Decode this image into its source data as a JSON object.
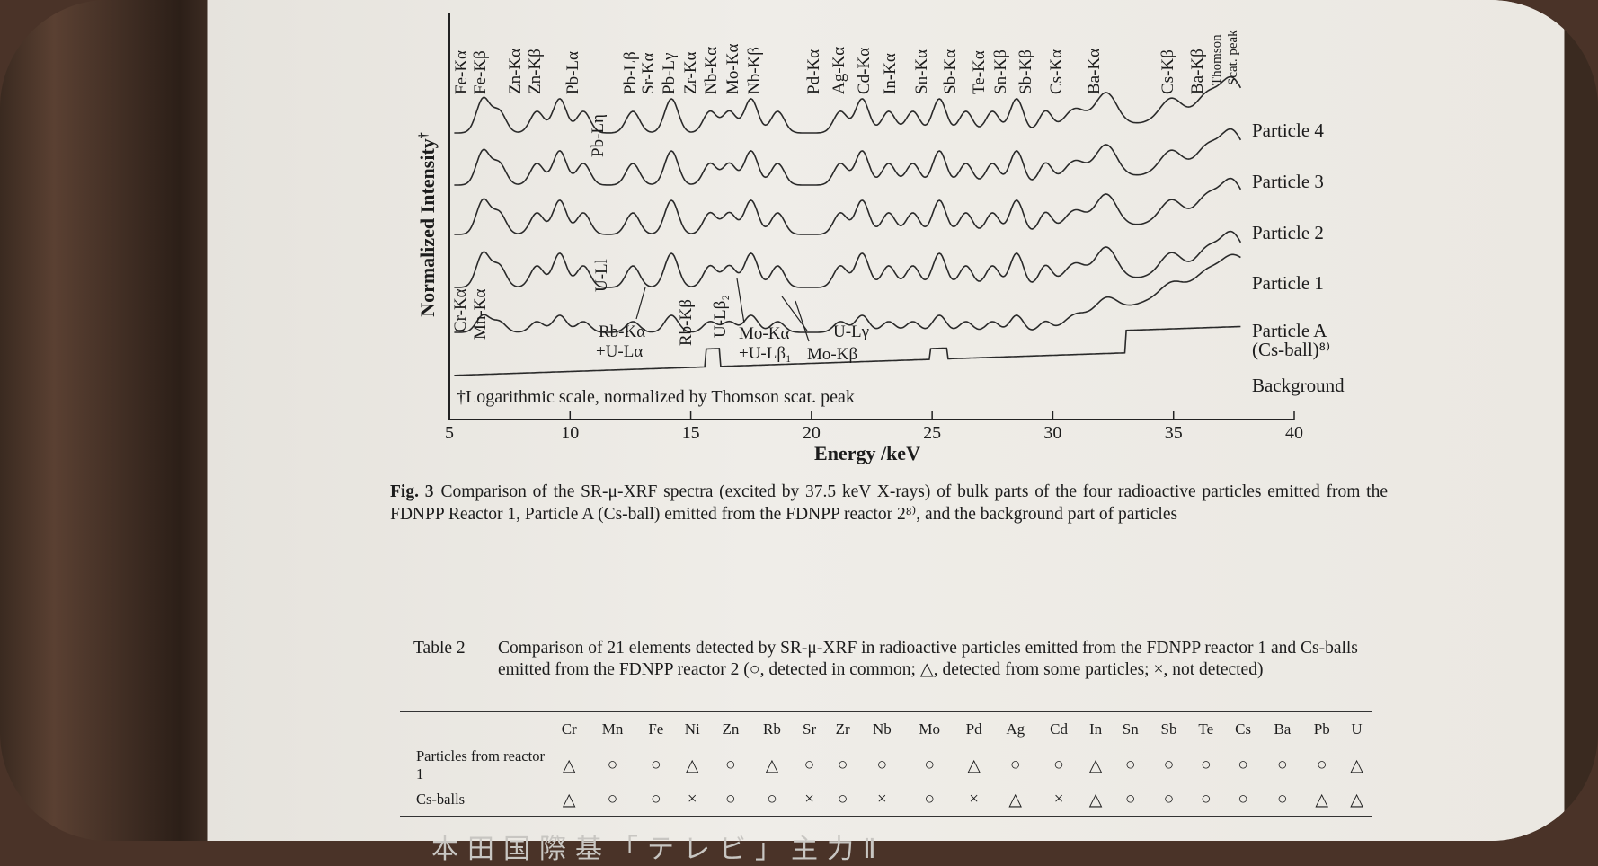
{
  "figure": {
    "y_label": "Normalized Intensity",
    "y_label_mark": "†",
    "x_label": "Energy /keV",
    "x_ticks": [
      "5",
      "10",
      "15",
      "20",
      "25",
      "30",
      "35",
      "40"
    ],
    "footnote": "†Logarithmic scale, normalized by Thomson scat. peak",
    "trace_labels": [
      "Particle 4",
      "Particle 3",
      "Particle 2",
      "Particle 1",
      "Particle A",
      "(Cs-ball)⁸⁾",
      "Background"
    ],
    "top_peak_labels": [
      "Fe-Kα",
      "Fe-Kβ",
      "Zn-Kα",
      "Zn-Kβ",
      "Pb-Lα",
      "Pb-Lβ",
      "Pb-Lγ",
      "Sr-Kα",
      "Zr-Kα",
      "Nb-Kα",
      "Mo-Kα",
      "Nb-Kβ",
      "Pd-Kα",
      "Ag-Kα",
      "Cd-Kα",
      "In-Kα",
      "Sn-Kα",
      "Sb-Kα",
      "Te-Kα",
      "Sn-Kβ",
      "Sb-Kβ",
      "Cs-Kα",
      "Ba-Kα",
      "Cs-Kβ",
      "Ba-Kβ",
      "Thomson",
      "Scat. peak"
    ],
    "inner_labels": [
      "Pb-Lη",
      "U-Ll",
      "Cr-Kα",
      "Mn-Kα",
      "Rb-Kβ",
      "U-Lβ₂"
    ],
    "bottom_labels": [
      "Rb-Kα",
      "+U-Lα",
      "Mo-Kα",
      "+U-Lβ₁",
      "U-Lγ",
      "Mo-Kβ"
    ],
    "caption_label": "Fig. 3",
    "caption_text": "Comparison of the SR-μ-XRF spectra (excited by 37.5 keV X-rays) of bulk parts of the four radioactive particles emitted from the FDNPP Reactor 1, Particle A (Cs-ball) emitted from the FDNPP reactor 2⁸⁾, and the background part of particles"
  },
  "table": {
    "label": "Table 2",
    "caption": "Comparison of 21 elements detected by SR-μ-XRF in radioactive particles emitted from the FDNPP reactor 1 and Cs-balls emitted from the FDNPP reactor 2 (○, detected in common; △, detected from some particles; ×, not detected)",
    "columns": [
      "Cr",
      "Mn",
      "Fe",
      "Ni",
      "Zn",
      "Rb",
      "Sr",
      "Zr",
      "Nb",
      "Mo",
      "Pd",
      "Ag",
      "Cd",
      "In",
      "Sn",
      "Sb",
      "Te",
      "Cs",
      "Ba",
      "Pb",
      "U"
    ],
    "rows": [
      {
        "label": "Particles from reactor 1",
        "cells": [
          "△",
          "○",
          "○",
          "△",
          "○",
          "△",
          "○",
          "○",
          "○",
          "○",
          "△",
          "○",
          "○",
          "△",
          "○",
          "○",
          "○",
          "○",
          "○",
          "○",
          "△"
        ]
      },
      {
        "label": "Cs-balls",
        "cells": [
          "△",
          "○",
          "○",
          "×",
          "○",
          "○",
          "×",
          "○",
          "×",
          "○",
          "×",
          "△",
          "×",
          "△",
          "○",
          "○",
          "○",
          "○",
          "○",
          "△",
          "△"
        ]
      }
    ]
  },
  "footer_faint_text": "本田国際基「テレビ」主力Ⅱ"
}
